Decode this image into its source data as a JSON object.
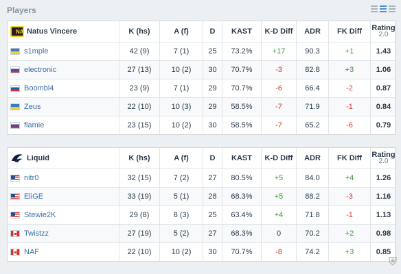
{
  "section_title": "Players",
  "columns": [
    "K (hs)",
    "A (f)",
    "D",
    "KAST",
    "K-D Diff",
    "ADR",
    "FK Diff",
    "Rating"
  ],
  "rating_version": "2.0",
  "teams": [
    {
      "name": "Natus Vincere",
      "logo_text": "NA",
      "players": [
        {
          "flag": "ua",
          "name": "s1mple",
          "k": "42 (9)",
          "a": "7 (1)",
          "d": "25",
          "kast": "73.2%",
          "kd": "+17",
          "adr": "90.3",
          "fk": "+1",
          "rating": "1.43"
        },
        {
          "flag": "ru",
          "name": "electronic",
          "k": "27 (13)",
          "a": "10 (2)",
          "d": "30",
          "kast": "70.7%",
          "kd": "-3",
          "adr": "82.8",
          "fk": "+3",
          "rating": "1.06"
        },
        {
          "flag": "ru",
          "name": "Boombl4",
          "k": "23 (9)",
          "a": "7 (1)",
          "d": "29",
          "kast": "70.7%",
          "kd": "-6",
          "adr": "66.4",
          "fk": "-2",
          "rating": "0.87"
        },
        {
          "flag": "ua",
          "name": "Zeus",
          "k": "22 (10)",
          "a": "10 (3)",
          "d": "29",
          "kast": "58.5%",
          "kd": "-7",
          "adr": "71.9",
          "fk": "-1",
          "rating": "0.84"
        },
        {
          "flag": "ru",
          "name": "flamie",
          "k": "23 (15)",
          "a": "10 (2)",
          "d": "30",
          "kast": "58.5%",
          "kd": "-7",
          "adr": "65.2",
          "fk": "-6",
          "rating": "0.79"
        }
      ]
    },
    {
      "name": "Liquid",
      "logo_text": "",
      "players": [
        {
          "flag": "us",
          "name": "nitr0",
          "k": "32 (15)",
          "a": "7 (2)",
          "d": "27",
          "kast": "80.5%",
          "kd": "+5",
          "adr": "84.0",
          "fk": "+4",
          "rating": "1.26"
        },
        {
          "flag": "us",
          "name": "EliGE",
          "k": "33 (19)",
          "a": "5 (1)",
          "d": "28",
          "kast": "68.3%",
          "kd": "+5",
          "adr": "88.2",
          "fk": "-3",
          "rating": "1.16"
        },
        {
          "flag": "us",
          "name": "Stewie2K",
          "k": "29 (8)",
          "a": "8 (3)",
          "d": "25",
          "kast": "63.4%",
          "kd": "+4",
          "adr": "71.8",
          "fk": "-1",
          "rating": "1.13"
        },
        {
          "flag": "ca",
          "name": "Twistzz",
          "k": "27 (19)",
          "a": "5 (2)",
          "d": "27",
          "kast": "68.3%",
          "kd": "0",
          "adr": "70.2",
          "fk": "+2",
          "rating": "0.98"
        },
        {
          "flag": "ca",
          "name": "NAF",
          "k": "22 (10)",
          "a": "10 (2)",
          "d": "30",
          "kast": "70.7%",
          "kd": "-8",
          "adr": "74.2",
          "fk": "+3",
          "rating": "0.85"
        }
      ]
    }
  ],
  "colors": {
    "positive": "#3a9a34",
    "negative": "#cf3a33",
    "link": "#3d6fa5",
    "header_text": "#8793a0"
  }
}
